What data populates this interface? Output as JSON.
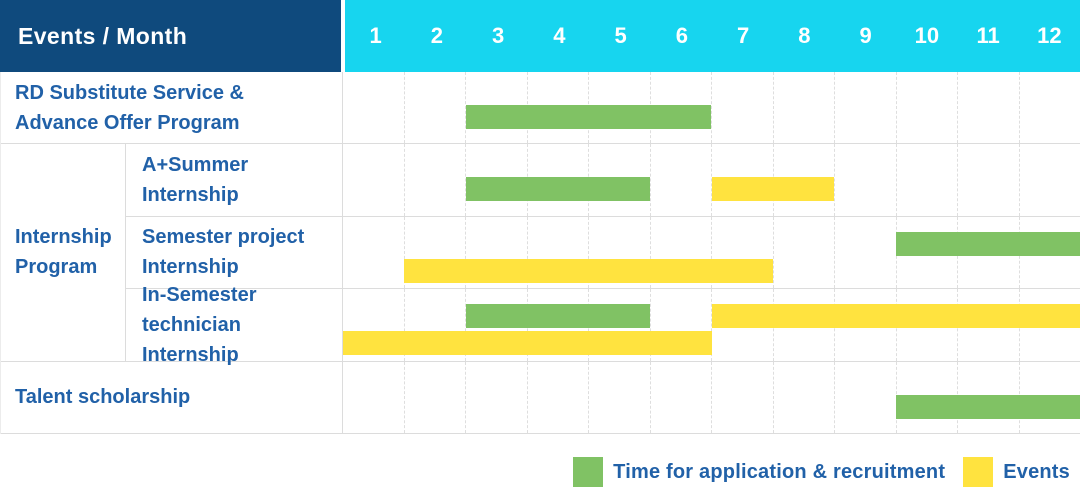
{
  "header": {
    "label": "Events / Month",
    "months": [
      "1",
      "2",
      "3",
      "4",
      "5",
      "6",
      "7",
      "8",
      "9",
      "10",
      "11",
      "12"
    ]
  },
  "group": {
    "label_lines": [
      "Internship",
      "Program"
    ]
  },
  "rows": [
    {
      "label_lines": [
        "RD Substitute Service &",
        "Advance Offer Program"
      ]
    },
    {
      "label_lines": [
        "A+Summer",
        "Internship"
      ]
    },
    {
      "label_lines": [
        "Semester project",
        "Internship"
      ]
    },
    {
      "label_lines": [
        "In-Semester",
        "technician Internship"
      ]
    },
    {
      "label_lines": [
        "Talent scholarship"
      ]
    }
  ],
  "legend": {
    "items": [
      {
        "color": "green",
        "label": "Time for application & recruitment"
      },
      {
        "color": "yellow",
        "label": "Events"
      }
    ]
  },
  "colors": {
    "header_bg": "#0F4A7D",
    "months_bg": "#17D5EF",
    "text_blue": "#2161A8",
    "green": "#80C264",
    "yellow": "#FFE33F",
    "grid": "#DCDCDC"
  },
  "chart_data": {
    "type": "bar",
    "subtype": "gantt",
    "title": "Events / Month",
    "xlabel": "Month",
    "x_range": [
      1,
      12
    ],
    "x_ticks": [
      "1",
      "2",
      "3",
      "4",
      "5",
      "6",
      "7",
      "8",
      "9",
      "10",
      "11",
      "12"
    ],
    "legend_entries": [
      "Time for application & recruitment",
      "Events"
    ],
    "legend_position": "bottom-right",
    "tasks": [
      {
        "event": "RD Substitute Service & Advance Offer Program",
        "group": null,
        "bars": [
          {
            "category": "Time for application & recruitment",
            "color": "green",
            "start_month": 3,
            "end_month": 6,
            "lane": "single"
          }
        ]
      },
      {
        "event": "A+Summer Internship",
        "group": "Internship Program",
        "bars": [
          {
            "category": "Time for application & recruitment",
            "color": "green",
            "start_month": 3,
            "end_month": 5,
            "lane": "single"
          },
          {
            "category": "Events",
            "color": "yellow",
            "start_month": 7,
            "end_month": 8,
            "lane": "single"
          }
        ]
      },
      {
        "event": "Semester project Internship",
        "group": "Internship Program",
        "bars": [
          {
            "category": "Time for application & recruitment",
            "color": "green",
            "start_month": 10,
            "end_month": 12,
            "lane": "top"
          },
          {
            "category": "Events",
            "color": "yellow",
            "start_month": 2,
            "end_month": 7,
            "lane": "bottom"
          }
        ]
      },
      {
        "event": "In-Semester technician Internship",
        "group": "Internship Program",
        "bars": [
          {
            "category": "Time for application & recruitment",
            "color": "green",
            "start_month": 3,
            "end_month": 5,
            "lane": "top"
          },
          {
            "category": "Events",
            "color": "yellow",
            "start_month": 7,
            "end_month": 12,
            "lane": "top"
          },
          {
            "category": "Events",
            "color": "yellow",
            "start_month": 1,
            "end_month": 6,
            "lane": "bottom"
          }
        ]
      },
      {
        "event": "Talent scholarship",
        "group": null,
        "bars": [
          {
            "category": "Time for application & recruitment",
            "color": "green",
            "start_month": 10,
            "end_month": 12,
            "lane": "single"
          }
        ]
      }
    ]
  }
}
